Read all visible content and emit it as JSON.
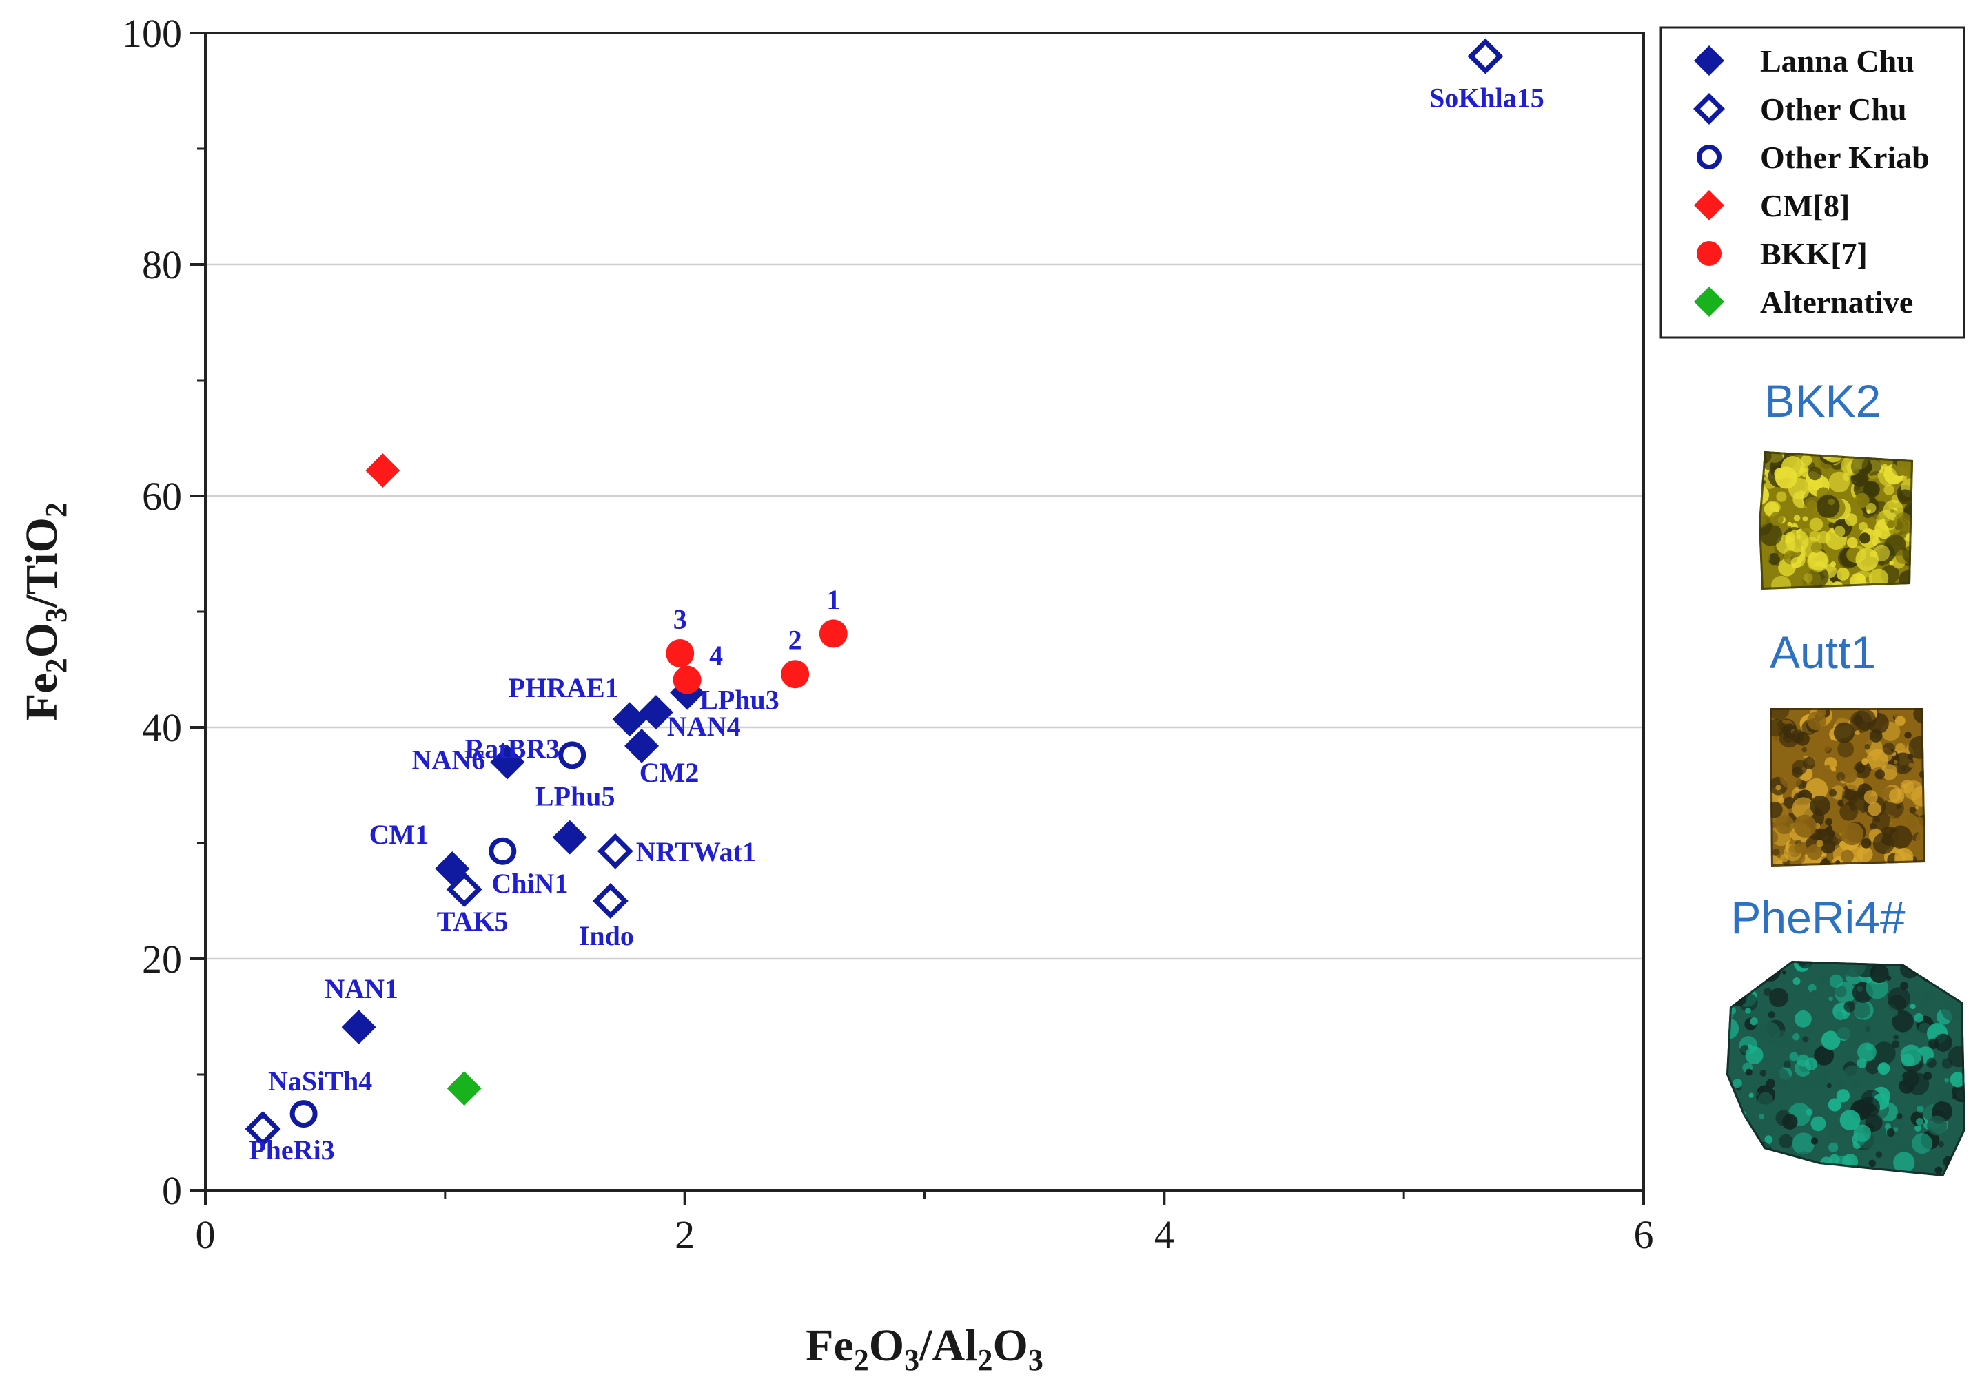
{
  "chart_data": {
    "type": "scatter",
    "x_axis": {
      "label_parts": [
        "Fe",
        "2",
        "O",
        "3",
        "/Al",
        "2",
        "O",
        "3"
      ],
      "range": [
        0,
        6
      ],
      "ticks": [
        0,
        2,
        4,
        6
      ]
    },
    "y_axis": {
      "label_parts": [
        "Fe",
        "2",
        "O",
        "3",
        "/TiO",
        "2"
      ],
      "range": [
        0,
        100
      ],
      "ticks": [
        0,
        20,
        40,
        60,
        80,
        100
      ]
    },
    "grid": "horizontal",
    "legend_position": "right",
    "series": [
      {
        "name": "Lanna Chu",
        "marker": "diamond-filled",
        "color": "#0f1aa0",
        "points": [
          {
            "x": 0.64,
            "y": 14.1,
            "label": "NAN1"
          },
          {
            "x": 1.03,
            "y": 27.8,
            "label": "CM1"
          },
          {
            "x": 1.26,
            "y": 37.0,
            "label": "NAN6"
          },
          {
            "x": 1.52,
            "y": 30.5,
            "label": "LPhu5"
          },
          {
            "x": 1.77,
            "y": 40.7,
            "label": "PHRAE1"
          },
          {
            "x": 1.88,
            "y": 41.3,
            "label": "NAN4"
          },
          {
            "x": 1.82,
            "y": 38.4,
            "label": "CM2"
          },
          {
            "x": 2.01,
            "y": 43.0,
            "label": "LPhu3"
          }
        ]
      },
      {
        "name": "Other Chu",
        "marker": "diamond-open",
        "color": "#0f1aa0",
        "points": [
          {
            "x": 0.24,
            "y": 5.3,
            "label": "PheRi3"
          },
          {
            "x": 1.08,
            "y": 26.0,
            "label": "TAK5"
          },
          {
            "x": 1.69,
            "y": 25.0,
            "label": "Indo"
          },
          {
            "x": 1.71,
            "y": 29.3,
            "label": "NRTWat1"
          },
          {
            "x": 5.34,
            "y": 98.0,
            "label": "SoKhla15"
          }
        ]
      },
      {
        "name": "Other Kriab",
        "marker": "circle-open",
        "color": "#0f1aa0",
        "points": [
          {
            "x": 0.41,
            "y": 6.6,
            "label": "NaSiTh4"
          },
          {
            "x": 1.24,
            "y": 29.3,
            "label": "ChiN1"
          },
          {
            "x": 1.53,
            "y": 37.6,
            "label": "RatBR3"
          }
        ]
      },
      {
        "name": "CM[8]",
        "marker": "diamond-filled",
        "color": "#ff1a1a",
        "points": [
          {
            "x": 0.74,
            "y": 62.2,
            "label": ""
          }
        ]
      },
      {
        "name": "BKK[7]",
        "marker": "circle-filled",
        "color": "#ff1a1a",
        "points": [
          {
            "x": 2.62,
            "y": 48.1,
            "label": "1"
          },
          {
            "x": 2.46,
            "y": 44.6,
            "label": "2"
          },
          {
            "x": 1.98,
            "y": 46.4,
            "label": "3"
          },
          {
            "x": 2.01,
            "y": 44.1,
            "label": "4"
          }
        ]
      },
      {
        "name": "Alternative",
        "marker": "diamond-filled",
        "color": "#17b21c",
        "points": [
          {
            "x": 1.08,
            "y": 8.8,
            "label": ""
          }
        ]
      }
    ]
  },
  "photos": [
    {
      "label": "BKK2",
      "colors": [
        "#e8de32",
        "#8a7e0c",
        "#3e3a08"
      ]
    },
    {
      "label": "Autt1",
      "colors": [
        "#d6a52c",
        "#8c6514",
        "#3d2d0b"
      ]
    },
    {
      "label": "PheRi4#",
      "colors": [
        "#1ab28e",
        "#1d5b4c",
        "#122622"
      ]
    }
  ]
}
